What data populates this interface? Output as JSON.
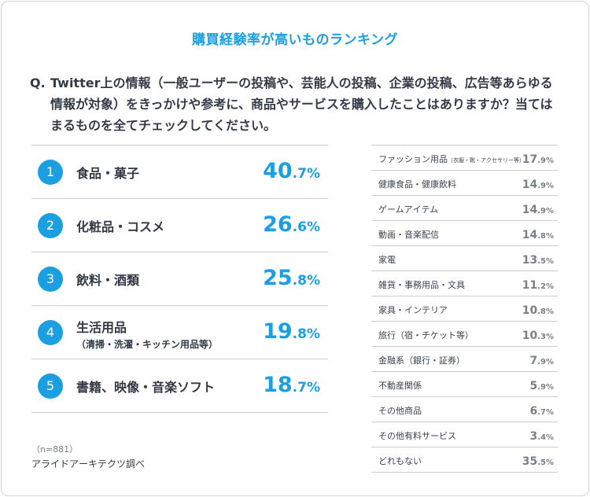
{
  "title": "購買経験率が高いものランキング",
  "question": {
    "prefix": "Q.",
    "text": "Twitter上の情報（一般ユーザーの投稿や、芸能人の投稿、企業の投稿、広告等あらゆる情報が対象）をきっかけや参考に、商品やサービスを購入したことはありますか？当てはまるものを全てチェックしてください。"
  },
  "chart_data": {
    "type": "table",
    "title": "購買経験率が高いものランキング",
    "unit": "%",
    "top5": [
      {
        "rank": "1",
        "label": "食品・菓子",
        "sub": "",
        "value": 40.7,
        "int": "40",
        "dec": ".7%"
      },
      {
        "rank": "2",
        "label": "化粧品・コスメ",
        "sub": "",
        "value": 26.6,
        "int": "26",
        "dec": ".6%"
      },
      {
        "rank": "3",
        "label": "飲料・酒類",
        "sub": "",
        "value": 25.8,
        "int": "25",
        "dec": ".8%"
      },
      {
        "rank": "4",
        "label": "生活用品",
        "sub": "（清掃・洗濯・キッチン用品等）",
        "value": 19.8,
        "int": "19",
        "dec": ".8%"
      },
      {
        "rank": "5",
        "label": "書籍、映像・音楽ソフト",
        "sub": "",
        "value": 18.7,
        "int": "18",
        "dec": ".7%"
      }
    ],
    "others": [
      {
        "label": "ファッション用品",
        "small": "（衣服・靴・アクセサリー等）",
        "value": 17.9,
        "int": "17",
        "dec": ".9%"
      },
      {
        "label": "健康食品・健康飲料",
        "small": "",
        "value": 14.9,
        "int": "14",
        "dec": ".9%"
      },
      {
        "label": "ゲームアイテム",
        "small": "",
        "value": 14.9,
        "int": "14",
        "dec": ".9%"
      },
      {
        "label": "動画・音楽配信",
        "small": "",
        "value": 14.8,
        "int": "14",
        "dec": ".8%"
      },
      {
        "label": "家電",
        "small": "",
        "value": 13.5,
        "int": "13",
        "dec": ".5%"
      },
      {
        "label": "雑貨・事務用品・文具",
        "small": "",
        "value": 11.2,
        "int": "11",
        "dec": ".2%"
      },
      {
        "label": "家具・インテリア",
        "small": "",
        "value": 10.8,
        "int": "10",
        "dec": ".8%"
      },
      {
        "label": "旅行（宿・チケット等）",
        "small": "",
        "value": 10.3,
        "int": "10",
        "dec": ".3%"
      },
      {
        "label": "金融系（銀行・証券）",
        "small": "",
        "value": 7.9,
        "int": "7",
        "dec": ".9%"
      },
      {
        "label": "不動産関係",
        "small": "",
        "value": 5.9,
        "int": "5",
        "dec": ".9%"
      },
      {
        "label": "その他商品",
        "small": "",
        "value": 6.7,
        "int": "6",
        "dec": ".7%"
      },
      {
        "label": "その他有料サービス",
        "small": "",
        "value": 3.4,
        "int": "3",
        "dec": ".4%"
      },
      {
        "label": "どれもない",
        "small": "",
        "value": 35.5,
        "int": "35",
        "dec": ".5%"
      }
    ]
  },
  "sample_note": "（n=881）",
  "source": "アライドアーキテクツ調べ",
  "colors": {
    "accent": "#1b9fe0",
    "text": "#333a44",
    "muted": "#7a8089",
    "rule": "#c9cdd2"
  }
}
